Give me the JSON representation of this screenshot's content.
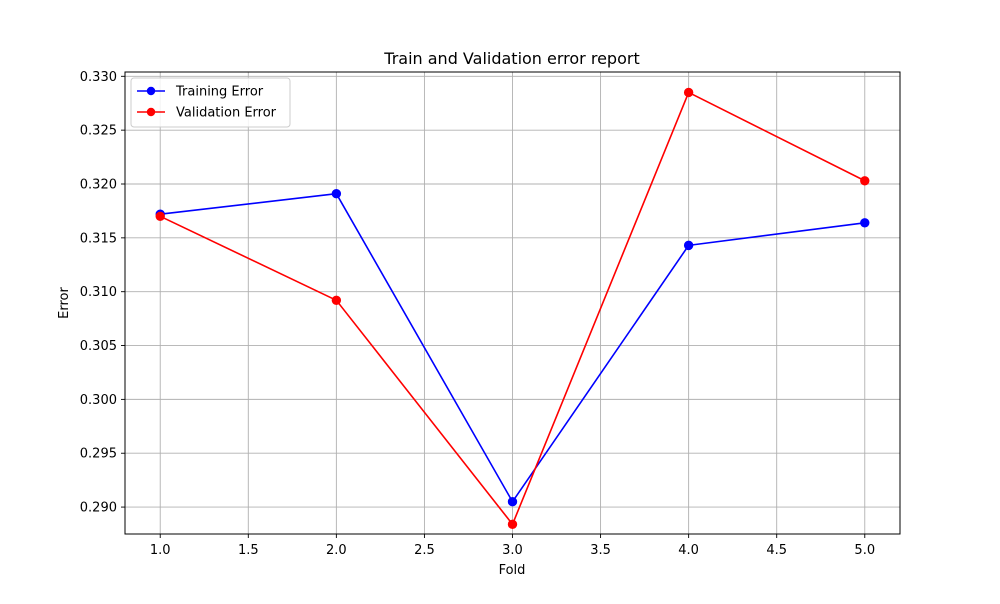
{
  "chart_data": {
    "type": "line",
    "title": "Train and Validation error report",
    "xlabel": "Fold",
    "ylabel": "Error",
    "xlim": [
      0.8,
      5.2
    ],
    "ylim": [
      0.2875,
      0.3304
    ],
    "xticks": [
      1.0,
      1.5,
      2.0,
      2.5,
      3.0,
      3.5,
      4.0,
      4.5,
      5.0
    ],
    "xtick_labels": [
      "1.0",
      "1.5",
      "2.0",
      "2.5",
      "3.0",
      "3.5",
      "4.0",
      "4.5",
      "5.0"
    ],
    "yticks": [
      0.29,
      0.295,
      0.3,
      0.305,
      0.31,
      0.315,
      0.32,
      0.325,
      0.33
    ],
    "ytick_labels": [
      "0.290",
      "0.295",
      "0.300",
      "0.305",
      "0.310",
      "0.315",
      "0.320",
      "0.325",
      "0.330"
    ],
    "grid": true,
    "legend_position": "upper-left",
    "x": [
      1,
      2,
      3,
      4,
      5
    ],
    "series": [
      {
        "name": "Training Error",
        "color": "#0000ff",
        "marker": "circle",
        "values": [
          0.3172,
          0.3191,
          0.2905,
          0.3143,
          0.3164
        ]
      },
      {
        "name": "Validation Error",
        "color": "#ff0000",
        "marker": "circle",
        "values": [
          0.317,
          0.3092,
          0.2884,
          0.3285,
          0.3203
        ]
      }
    ]
  }
}
